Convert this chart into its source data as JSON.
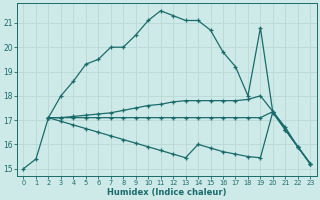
{
  "xlabel": "Humidex (Indice chaleur)",
  "bg_color": "#ceeae8",
  "grid_color": "#b8d8d6",
  "line_color": "#1a6b6b",
  "xlim": [
    -0.5,
    23.5
  ],
  "ylim": [
    14.7,
    21.8
  ],
  "yticks": [
    15,
    16,
    17,
    18,
    19,
    20,
    21
  ],
  "xticks": [
    0,
    1,
    2,
    3,
    4,
    5,
    6,
    7,
    8,
    9,
    10,
    11,
    12,
    13,
    14,
    15,
    16,
    17,
    18,
    19,
    20,
    21,
    22,
    23
  ],
  "line1_x": [
    0,
    1,
    2,
    3,
    4,
    5,
    6,
    7,
    8,
    9,
    10,
    11,
    12,
    13,
    14,
    15,
    16,
    17,
    18,
    19,
    20,
    21,
    22,
    23
  ],
  "line1_y": [
    15.0,
    15.4,
    17.1,
    18.0,
    18.6,
    19.3,
    19.5,
    20.0,
    20.0,
    20.5,
    21.1,
    21.5,
    21.3,
    21.1,
    21.1,
    20.7,
    19.8,
    19.2,
    18.0,
    20.8,
    17.3,
    16.6,
    15.9,
    15.2
  ],
  "line2_x": [
    2,
    3,
    4,
    5,
    6,
    7,
    8,
    9,
    10,
    11,
    12,
    13,
    14,
    15,
    16,
    17,
    18,
    19,
    20,
    21,
    22,
    23
  ],
  "line2_y": [
    17.1,
    17.1,
    17.15,
    17.2,
    17.25,
    17.3,
    17.4,
    17.5,
    17.6,
    17.65,
    17.75,
    17.8,
    17.8,
    17.8,
    17.8,
    17.8,
    17.85,
    18.0,
    17.35,
    16.7,
    15.9,
    15.2
  ],
  "line3_x": [
    2,
    3,
    4,
    5,
    6,
    7,
    8,
    9,
    10,
    11,
    12,
    13,
    14,
    15,
    16,
    17,
    18,
    19,
    20,
    21,
    22,
    23
  ],
  "line3_y": [
    17.1,
    17.1,
    17.1,
    17.1,
    17.1,
    17.1,
    17.1,
    17.1,
    17.1,
    17.1,
    17.1,
    17.1,
    17.1,
    17.1,
    17.1,
    17.1,
    17.1,
    17.1,
    17.35,
    16.6,
    15.9,
    15.2
  ],
  "line4_x": [
    2,
    3,
    4,
    5,
    6,
    7,
    8,
    9,
    10,
    11,
    12,
    13,
    14,
    15,
    16,
    17,
    18,
    19,
    20,
    21,
    22,
    23
  ],
  "line4_y": [
    17.1,
    16.95,
    16.8,
    16.65,
    16.5,
    16.35,
    16.2,
    16.05,
    15.9,
    15.75,
    15.6,
    15.45,
    16.0,
    15.85,
    15.7,
    15.6,
    15.5,
    15.45,
    17.35,
    16.6,
    15.9,
    15.2
  ]
}
